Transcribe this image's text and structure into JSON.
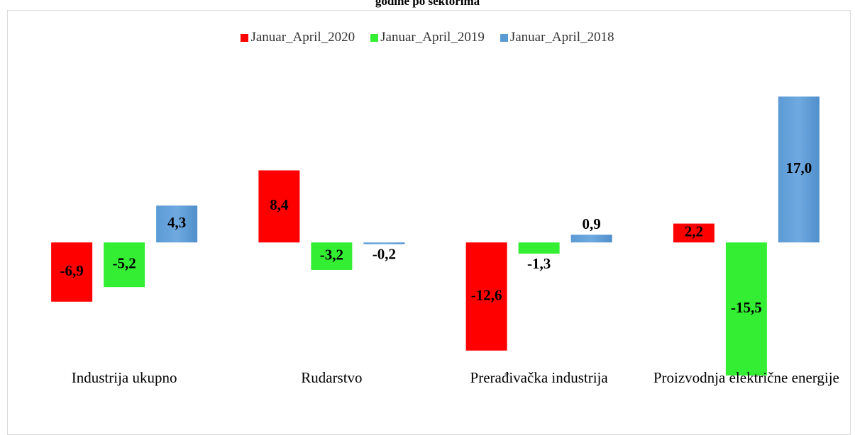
{
  "chart_data": {
    "type": "bar",
    "title": "godine po sektorima",
    "categories": [
      "Industrija ukupno",
      "Rudarstvo",
      "Prerađivačka industrija",
      "Proizvodnja električne energije"
    ],
    "series": [
      {
        "name": "Januar_April_2020",
        "color": "#ff0000",
        "values": [
          -6.9,
          8.4,
          -12.6,
          2.2
        ],
        "value_labels": [
          "-6,9",
          "8,4",
          "-12,6",
          "2,2"
        ]
      },
      {
        "name": "Januar_April_2019",
        "color": "#33ee33",
        "values": [
          -5.2,
          -3.2,
          -1.3,
          -15.5
        ],
        "value_labels": [
          "-5,2",
          "-3,2",
          "-1,3",
          "-15,5"
        ]
      },
      {
        "name": "Januar_April_2018",
        "color": "#5b9bd5",
        "values": [
          4.3,
          -0.2,
          0.9,
          17.0
        ],
        "value_labels": [
          "4,3",
          "-0,2",
          "0,9",
          "17,0"
        ]
      }
    ],
    "ylim": [
      -16,
      20
    ],
    "legend": "top"
  }
}
